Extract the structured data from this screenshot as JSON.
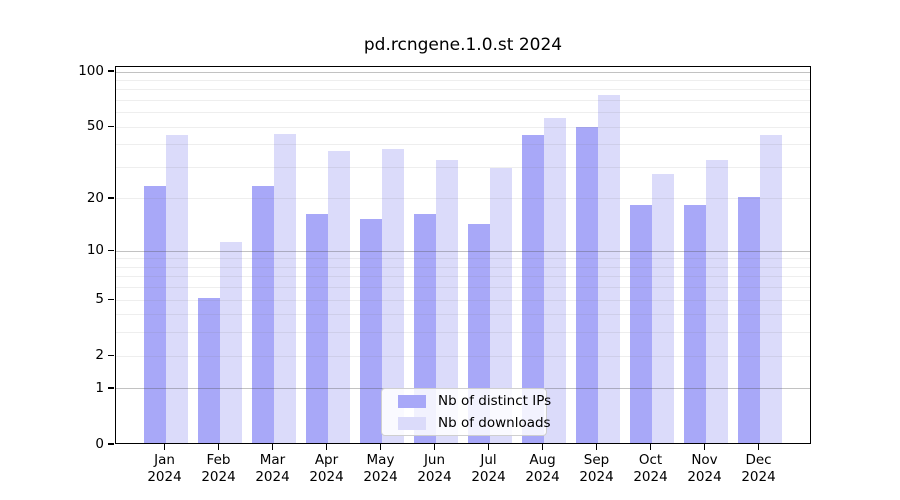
{
  "chart_data": {
    "type": "bar",
    "title": "pd.rcngene.1.0.st 2024",
    "categories": [
      "Jan",
      "Feb",
      "Mar",
      "Apr",
      "May",
      "Jun",
      "Jul",
      "Aug",
      "Sep",
      "Oct",
      "Nov",
      "Dec"
    ],
    "x_sublabel": "2024",
    "series": [
      {
        "name": "Nb of distinct IPs",
        "color": "#a8a8f8",
        "values": [
          23,
          5,
          23,
          16,
          15,
          16,
          14,
          44,
          49,
          18,
          18,
          20
        ]
      },
      {
        "name": "Nb of downloads",
        "color": "#dbdbfa",
        "values": [
          44,
          11,
          45,
          36,
          37,
          32,
          29,
          55,
          73,
          27,
          32,
          44
        ]
      }
    ],
    "y_axis": {
      "scale": "log1p",
      "min": 0,
      "max": 106.5,
      "tick_values": [
        0,
        1,
        2,
        5,
        10,
        20,
        50,
        100
      ],
      "minor_gridlines": [
        2,
        3,
        4,
        5,
        6,
        7,
        8,
        9,
        20,
        30,
        40,
        50,
        60,
        70,
        80,
        90
      ],
      "major_gridlines": [
        1,
        10,
        100
      ]
    },
    "legend": {
      "position": "inside-bottom-center"
    },
    "colors": {
      "axis": "#000000",
      "background": "#ffffff"
    }
  }
}
